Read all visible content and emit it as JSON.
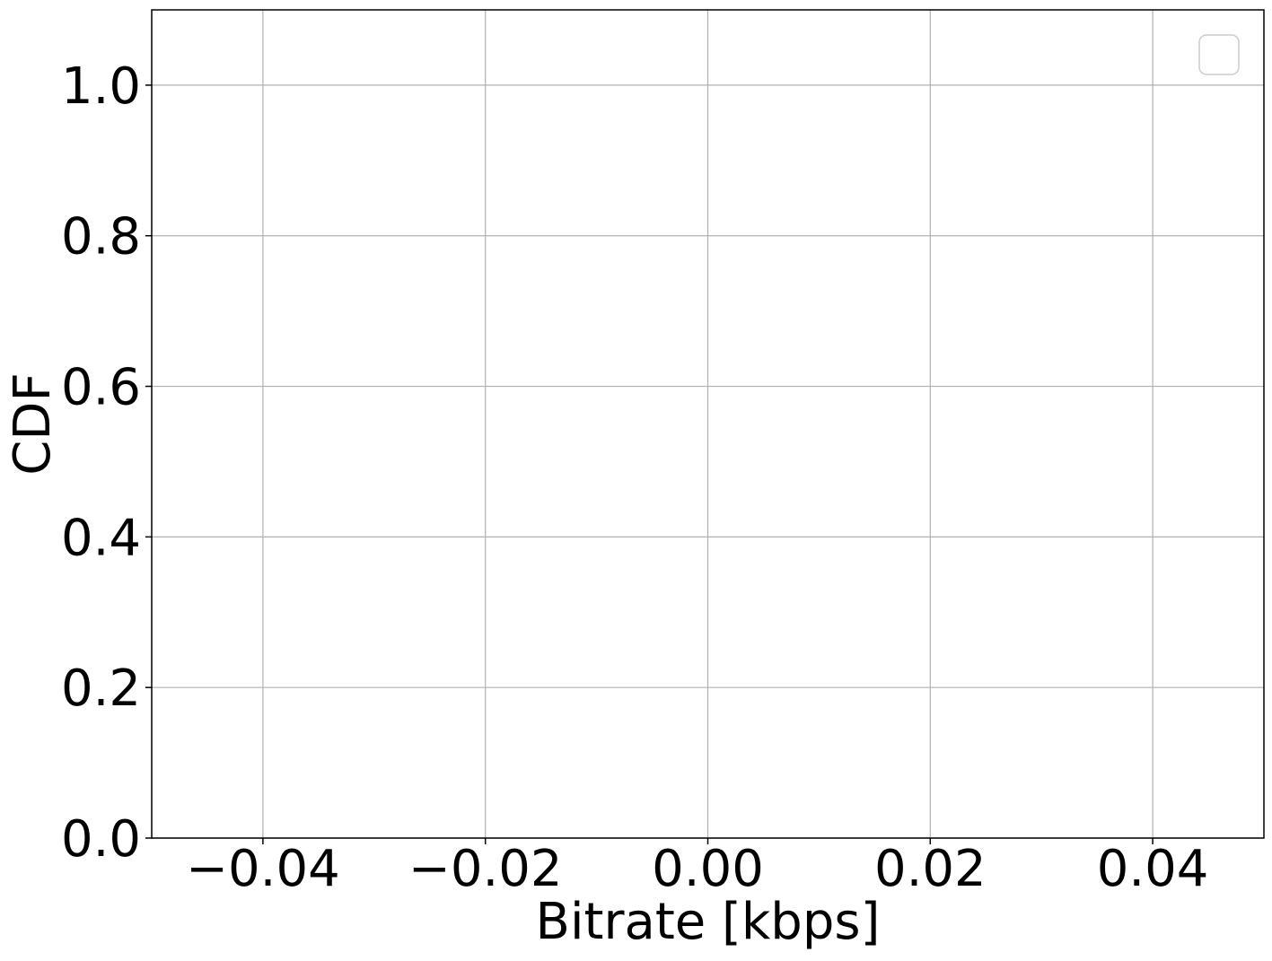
{
  "chart_data": {
    "type": "line",
    "title": "",
    "xlabel": "Bitrate [kbps]",
    "ylabel": "CDF",
    "xlim": [
      -0.05,
      0.05
    ],
    "ylim": [
      0.0,
      1.1
    ],
    "x_ticks": [
      -0.04,
      -0.02,
      0.0,
      0.02,
      0.04
    ],
    "x_tick_labels": [
      "−0.04",
      "−0.02",
      "0.00",
      "0.02",
      "0.04"
    ],
    "y_ticks": [
      0.0,
      0.2,
      0.4,
      0.6,
      0.8,
      1.0
    ],
    "y_tick_labels": [
      "0.0",
      "0.2",
      "0.4",
      "0.6",
      "0.8",
      "1.0"
    ],
    "grid": true,
    "legend": {
      "placement": "top-right",
      "entries": []
    },
    "series": [],
    "colors": {
      "grid": "#b0b0b0",
      "axes": "#000000",
      "legend_border": "#cccccc"
    }
  }
}
